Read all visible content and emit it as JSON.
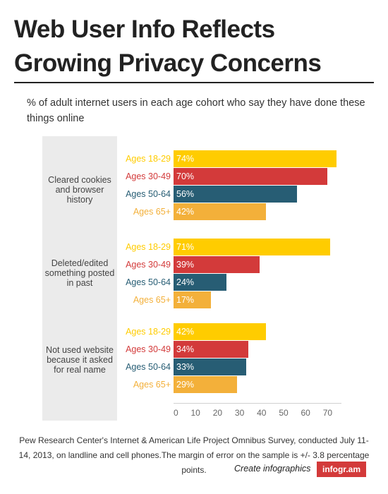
{
  "title": "Web User Info Reflects Growing Privacy Concerns",
  "subtitle": "% of adult internet users in each age cohort who say they have done these things online",
  "colors": {
    "ages_18_29": "#ffcc00",
    "ages_30_49": "#d33a3a",
    "ages_50_64": "#275d74",
    "ages_65_plus": "#f3b03a",
    "group_background": "#ebebeb"
  },
  "chart_data": {
    "type": "bar",
    "orientation": "horizontal",
    "xlim": [
      0,
      77
    ],
    "xticks": [
      "0",
      "10",
      "20",
      "30",
      "40",
      "50",
      "60",
      "70"
    ],
    "groups": [
      {
        "label": "Cleared cookies and browser history",
        "bars": [
          {
            "name": "Ages 18-29",
            "value": 74,
            "value_label": "74%",
            "color": "#ffcc00"
          },
          {
            "name": "Ages 30-49",
            "value": 70,
            "value_label": "70%",
            "color": "#d33a3a"
          },
          {
            "name": "Ages 50-64",
            "value": 56,
            "value_label": "56%",
            "color": "#275d74"
          },
          {
            "name": "Ages 65+",
            "value": 42,
            "value_label": "42%",
            "color": "#f3b03a"
          }
        ]
      },
      {
        "label": "Deleted/edited something posted in past",
        "bars": [
          {
            "name": "Ages 18-29",
            "value": 71,
            "value_label": "71%",
            "color": "#ffcc00"
          },
          {
            "name": "Ages 30-49",
            "value": 39,
            "value_label": "39%",
            "color": "#d33a3a"
          },
          {
            "name": "Ages 50-64",
            "value": 24,
            "value_label": "24%",
            "color": "#275d74"
          },
          {
            "name": "Ages 65+",
            "value": 17,
            "value_label": "17%",
            "color": "#f3b03a"
          }
        ]
      },
      {
        "label": "Not used website because it asked for real name",
        "bars": [
          {
            "name": "Ages 18-29",
            "value": 42,
            "value_label": "42%",
            "color": "#ffcc00"
          },
          {
            "name": "Ages 30-49",
            "value": 34,
            "value_label": "34%",
            "color": "#d33a3a"
          },
          {
            "name": "Ages 50-64",
            "value": 33,
            "value_label": "33%",
            "color": "#275d74"
          },
          {
            "name": "Ages 65+",
            "value": 29,
            "value_label": "29%",
            "color": "#f3b03a"
          }
        ]
      }
    ]
  },
  "source": "Pew Research Center's Internet & American Life Project Omnibus Survey, conducted July 11-14, 2013, on landline and cell phones.The margin of error on the sample is +/- 3.8 percentage points.",
  "footer": {
    "link_text": "Create infographics",
    "brand": "infogr.am"
  }
}
